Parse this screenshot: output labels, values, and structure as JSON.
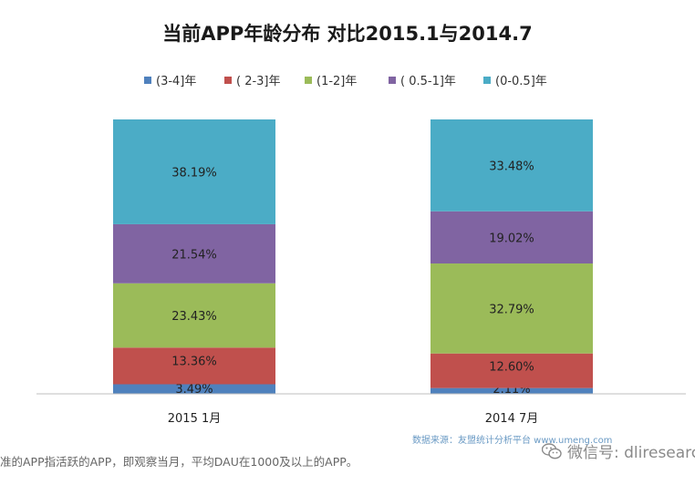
{
  "chart_data": {
    "type": "bar",
    "stacked": true,
    "title": "当前APP年龄分布 对比2015.1与2014.7",
    "categories": [
      "2015 1月",
      "2014 7月"
    ],
    "series": [
      {
        "name": "(3-4]年",
        "color": "#4f81bd",
        "values": [
          3.49,
          2.11
        ],
        "labels": [
          "3.49%",
          "2.11%"
        ]
      },
      {
        "name": "( 2-3]年",
        "color": "#c0504d",
        "values": [
          13.36,
          12.6
        ],
        "labels": [
          "13.36%",
          "12.60%"
        ]
      },
      {
        "name": "(1-2]年",
        "color": "#9bbb59",
        "values": [
          23.43,
          32.79
        ],
        "labels": [
          "23.43%",
          "32.79%"
        ]
      },
      {
        "name": "( 0.5-1]年",
        "color": "#8064a2",
        "values": [
          21.54,
          19.02
        ],
        "labels": [
          "21.54%",
          "19.02%"
        ]
      },
      {
        "name": "(0-0.5]年",
        "color": "#4bacc6",
        "values": [
          38.19,
          33.48
        ],
        "labels": [
          "38.19%",
          "33.48%"
        ]
      }
    ],
    "ylim": [
      0,
      100
    ],
    "xlabel": "",
    "ylabel": "",
    "legend": "top",
    "grid": false
  },
  "footer": {
    "note": "准的APP指活跃的APP，即观察当月，平均DAU在1000及以上的APP。",
    "source": "数据来源：友盟统计分析平台 www.umeng.com",
    "watermark": "微信号: dliresearch"
  }
}
